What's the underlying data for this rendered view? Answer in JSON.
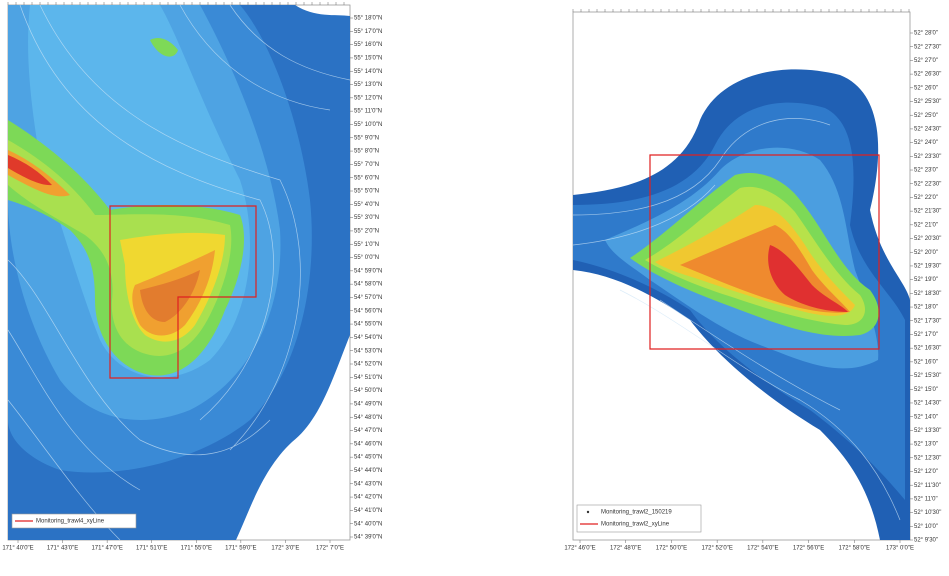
{
  "left_map": {
    "y_labels": [
      "55° 18'0\"N",
      "55° 17'0\"N",
      "55° 16'0\"N",
      "55° 15'0\"N",
      "55° 14'0\"N",
      "55° 13'0\"N",
      "55° 12'0\"N",
      "55° 11'0\"N",
      "55° 10'0\"N",
      "55° 9'0\"N",
      "55° 8'0\"N",
      "55° 7'0\"N",
      "55° 6'0\"N",
      "55° 5'0\"N",
      "55° 4'0\"N",
      "55° 3'0\"N",
      "55° 2'0\"N",
      "55° 1'0\"N",
      "55° 0'0\"N",
      "54° 59'0\"N",
      "54° 58'0\"N",
      "54° 57'0\"N",
      "54° 56'0\"N",
      "54° 55'0\"N",
      "54° 54'0\"N",
      "54° 53'0\"N",
      "54° 52'0\"N",
      "54° 51'0\"N",
      "54° 50'0\"N",
      "54° 49'0\"N",
      "54° 48'0\"N",
      "54° 47'0\"N",
      "54° 46'0\"N",
      "54° 45'0\"N",
      "54° 44'0\"N",
      "54° 43'0\"N",
      "54° 42'0\"N",
      "54° 41'0\"N",
      "54° 40'0\"N",
      "54° 39'0\"N"
    ],
    "x_labels": [
      "171° 40'0\"E",
      "171° 43'0\"E",
      "171° 47'0\"E",
      "171° 51'0\"E",
      "171° 55'0\"E",
      "171° 59'0\"E",
      "172° 3'0\"E",
      "172° 7'0\"E"
    ],
    "legend": [
      "Monitoring_trawl4_xyLine"
    ]
  },
  "right_map": {
    "y_labels": [
      "52° 28'0\"",
      "52° 27'30\"",
      "52° 27'0\"",
      "52° 26'30\"",
      "52° 26'0\"",
      "52° 25'30\"",
      "52° 25'0\"",
      "52° 24'30\"",
      "52° 24'0\"",
      "52° 23'30\"",
      "52° 23'0\"",
      "52° 22'30\"",
      "52° 22'0\"",
      "52° 21'30\"",
      "52° 21'0\"",
      "52° 20'30\"",
      "52° 20'0\"",
      "52° 19'30\"",
      "52° 19'0\"",
      "52° 18'30\"",
      "52° 18'0\"",
      "52° 17'30\"",
      "52° 17'0\"",
      "52° 16'30\"",
      "52° 16'0\"",
      "52° 15'30\"",
      "52° 15'0\"",
      "52° 14'30\"",
      "52° 14'0\"",
      "52° 13'30\"",
      "52° 13'0\"",
      "52° 12'30\"",
      "52° 12'0\"",
      "52° 11'30\"",
      "52° 11'0\"",
      "52° 10'30\"",
      "52° 10'0\"",
      "52° 9'30\""
    ],
    "x_labels": [
      "172° 46'0\"E",
      "172° 48'0\"E",
      "172° 50'0\"E",
      "172° 52'0\"E",
      "172° 54'0\"E",
      "172° 56'0\"E",
      "172° 58'0\"E",
      "173° 0'0\"E"
    ],
    "legend": [
      "Monitoring_trawl2_150219",
      "Monitoring_trawl2_xyLine"
    ]
  }
}
